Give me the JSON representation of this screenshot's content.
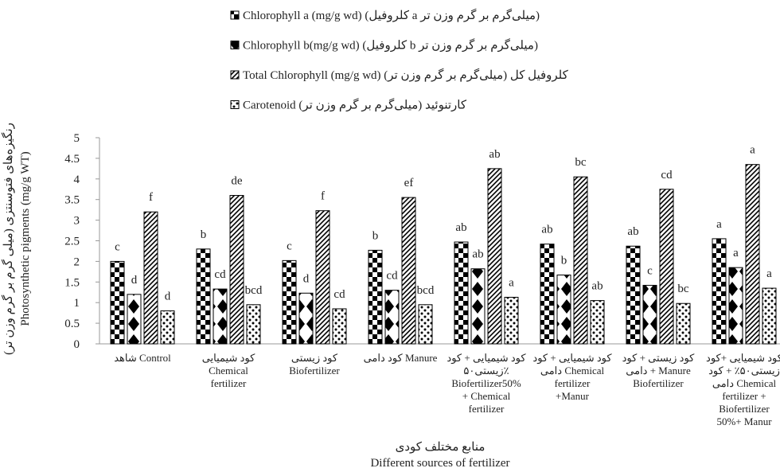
{
  "chart_data": {
    "type": "bar",
    "legend": "top",
    "y_label": [
      "رنگیزه‌های فتوسنتزی (میلی گرم بر گرم وزن تر)",
      "Photosynthetic pigments (mg/g WT)"
    ],
    "x_label": [
      "منابع مختلف کودی",
      "Different sources of fertilizer"
    ],
    "categories": [
      "شاهد  Control",
      "کود شیمیایی\nChemical\nfertilizer",
      "کود زیستی\nBiofertilizer",
      "کود دامی  Manure",
      "کود شیمیایی + کود\nزیستی۵۰٪\nBiofertilizer50%\n+ Chemical\nfertilizer",
      "کود شیمیایی + کود\nدامی  Chemical\nfertilizer\n+Manur",
      "کود زیستی + کود\nدامی  + Manure\nBiofertilizer",
      "کود شیمیایی +کود\nزیستی۵۰٪ + کود\nدامی  Chemical\nfertilizer +\nBiofertilizer\n50%+ Manur"
    ],
    "series": [
      {
        "name": "Chlorophyll a (mg/g wd)  (کلروفیل a میلی‌گرم بر گرم وزن تر)",
        "color": "#000",
        "values": [
          2.0,
          2.3,
          2.02,
          2.27,
          2.47,
          2.42,
          2.37,
          2.55
        ],
        "letters": [
          "c",
          "b",
          "c",
          "b",
          "ab",
          "ab",
          "ab",
          "a"
        ]
      },
      {
        "name": "Chlorophyll b(mg/g wd)  (کلروفیل b میلی‌گرم بر گرم وزن تر)",
        "color": "#000",
        "values": [
          1.2,
          1.33,
          1.23,
          1.3,
          1.82,
          1.67,
          1.42,
          1.85
        ],
        "letters": [
          "d",
          "cd",
          "d",
          "cd",
          "ab",
          "b",
          "c",
          "a"
        ]
      },
      {
        "name": "Total Chlorophyll  (mg/g wd)  (کلروفیل کل (میلی‌گرم بر گرم وزن تر",
        "color": "#000",
        "values": [
          3.2,
          3.6,
          3.23,
          3.55,
          4.25,
          4.05,
          3.75,
          4.35
        ],
        "letters": [
          "f",
          "de",
          "f",
          "ef",
          "ab",
          "bc",
          "cd",
          "a"
        ]
      },
      {
        "name": "Carotenoid (کارتنوئید (میلی‌گرم بر گرم وزن تر",
        "color": "#000",
        "values": [
          0.8,
          0.95,
          0.85,
          0.95,
          1.13,
          1.05,
          0.98,
          1.35
        ],
        "letters": [
          "d",
          "bcd",
          "cd",
          "bcd",
          "a",
          "ab",
          "bc",
          "a"
        ]
      }
    ],
    "ylim": [
      0,
      5
    ],
    "yticks": [
      0,
      0.5,
      1,
      1.5,
      2,
      2.5,
      3,
      3.5,
      4,
      4.5,
      5
    ]
  }
}
